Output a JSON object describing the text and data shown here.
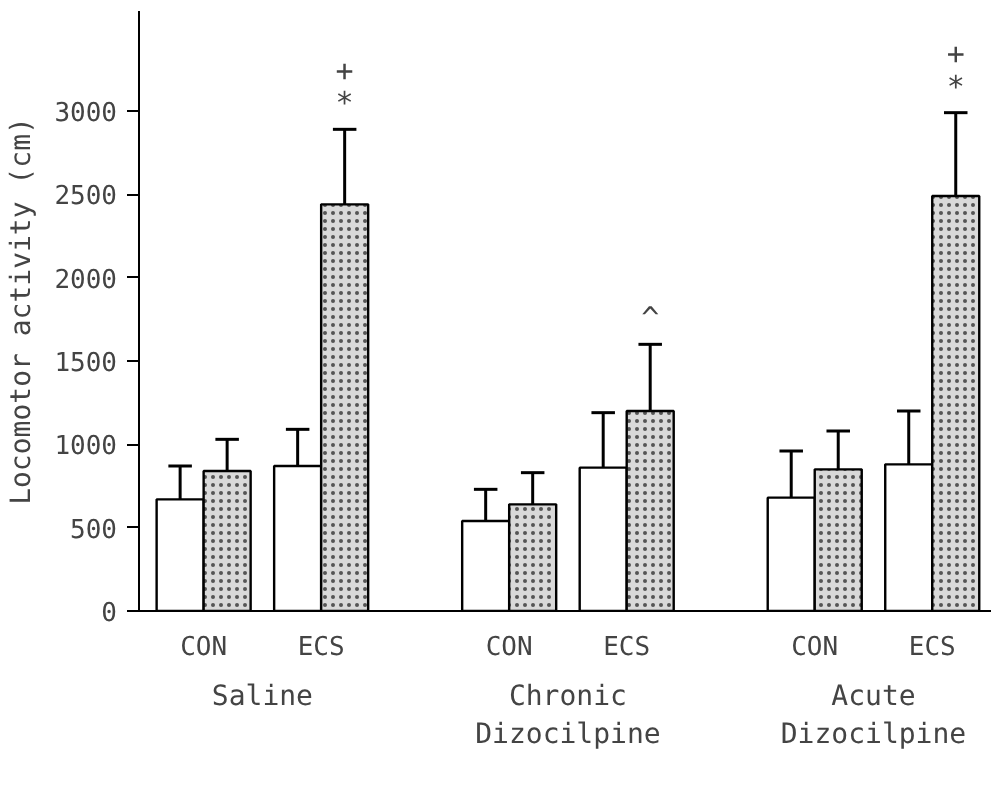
{
  "chart_data": {
    "type": "bar",
    "ylabel": "Locomotor activity (cm)",
    "categories": [
      "CON",
      "ECS",
      "CON",
      "ECS",
      "CON",
      "ECS"
    ],
    "series": [
      {
        "color": "#ffffff",
        "values": [
          670,
          870,
          540,
          860,
          680,
          880
        ],
        "errors": [
          [
            670,
            870
          ],
          [
            870,
            1090
          ],
          [
            540,
            730
          ],
          [
            860,
            1190
          ],
          [
            680,
            960
          ],
          [
            880,
            1200
          ]
        ]
      },
      {
        "color": "#d9d9d9",
        "values": [
          840,
          2440,
          640,
          1200,
          850,
          2490
        ],
        "errors": [
          [
            840,
            1030
          ],
          [
            2440,
            2890
          ],
          [
            640,
            830
          ],
          [
            1200,
            1600
          ],
          [
            850,
            1080
          ],
          [
            2490,
            2990
          ]
        ]
      }
    ],
    "ylim": [
      0,
      3600
    ],
    "yticks": [
      0,
      500,
      1000,
      1500,
      2000,
      2500,
      3000
    ],
    "annotations": [
      "Saline",
      "Chronic Dizocilpine",
      "Acute Dizocilpine",
      "+\n*",
      "^",
      "+\n*"
    ],
    "grid": false
  }
}
